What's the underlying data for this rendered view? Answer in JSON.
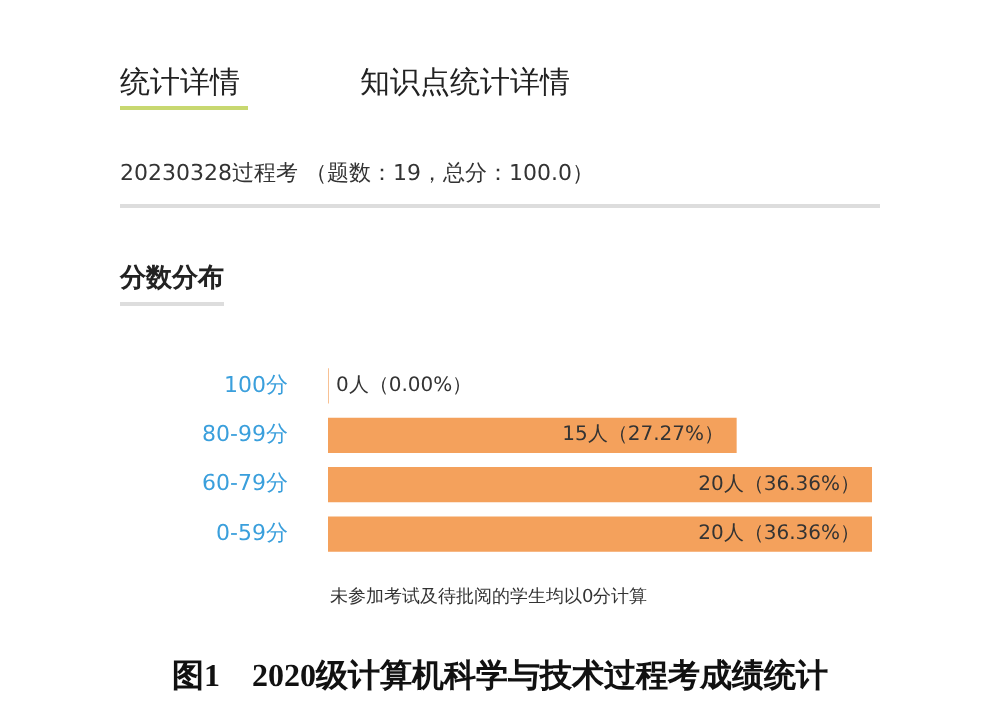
{
  "chart_data": {
    "type": "bar",
    "orientation": "horizontal",
    "title": "分数分布",
    "subtitle": "20230328过程考 （题数：19，总分：100.0）",
    "categories": [
      "100分",
      "80-99分",
      "60-79分",
      "0-59分"
    ],
    "values": [
      0,
      15,
      20,
      20
    ],
    "value_labels": [
      "0人（0.00%）",
      "15人（27.27%）",
      "20人（36.36%）",
      "20人（36.36%）"
    ],
    "color": "#f4a15c",
    "legend": false,
    "grid": false,
    "annotations": [
      "统计详情",
      "知识点统计详情",
      "未参加考试及待批阅的学生均以0分计算",
      "图1　2020级计算机科学与技术过程考成绩统计"
    ]
  }
}
